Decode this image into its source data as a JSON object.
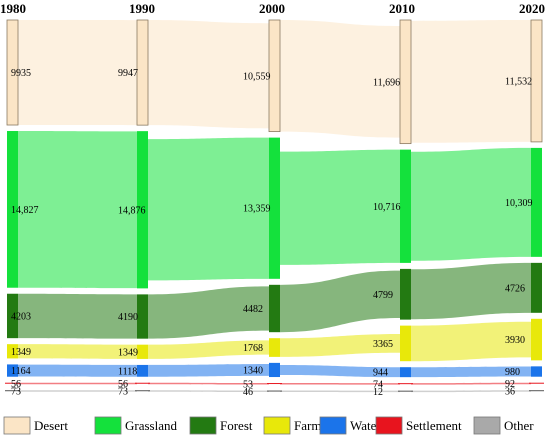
{
  "chart_data": {
    "type": "sankey",
    "years": [
      "1980",
      "1990",
      "2000",
      "2010",
      "2020"
    ],
    "categories": [
      "Desert",
      "Grassland",
      "Forest",
      "Farmland",
      "Water",
      "Settlement",
      "Other"
    ],
    "colors": [
      "#fbe5c6",
      "#14e13c",
      "#237a12",
      "#e8e80a",
      "#1b74ea",
      "#e8141e",
      "#a9a9a9"
    ],
    "values": [
      [
        9935,
        14827,
        4203,
        1349,
        1164,
        56,
        73
      ],
      [
        9947,
        14876,
        4190,
        1349,
        1118,
        56,
        73
      ],
      [
        10559,
        13359,
        4482,
        1768,
        1340,
        53,
        46
      ],
      [
        11696,
        10716,
        4799,
        3365,
        944,
        74,
        12
      ],
      [
        11532,
        10309,
        4726,
        3930,
        980,
        92,
        36
      ]
    ],
    "labels": [
      [
        "9935",
        "14,827",
        "4203",
        "1349",
        "1164",
        "56",
        "73"
      ],
      [
        "9947",
        "14,876",
        "4190",
        "1349",
        "1118",
        "56",
        "73"
      ],
      [
        "10,559",
        "13,359",
        "4482",
        "1768",
        "1340",
        "53",
        "46"
      ],
      [
        "11,696",
        "10,716",
        "4799",
        "3365",
        "944",
        "74",
        "12"
      ],
      [
        "11,532",
        "10,309",
        "4726",
        "3930",
        "980",
        "92",
        "36"
      ]
    ],
    "legend_position": "bottom"
  }
}
